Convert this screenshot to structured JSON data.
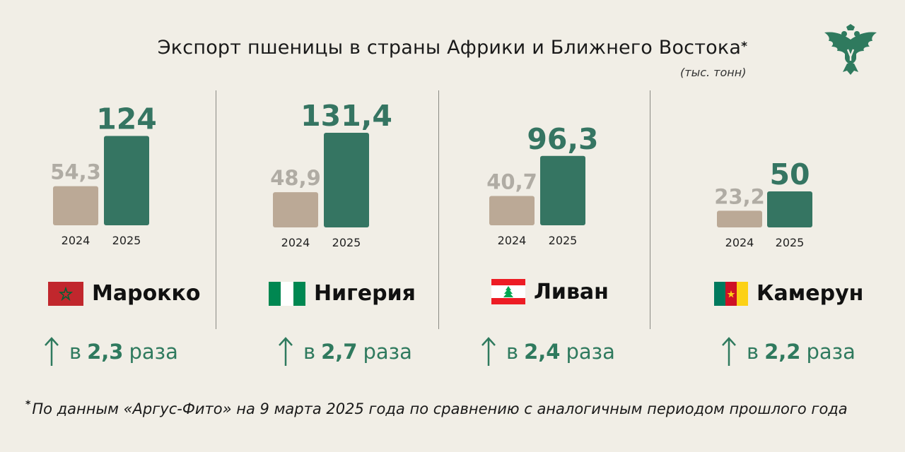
{
  "header": {
    "title": "Экспорт пшеницы в страны Африки и Ближнего Востока",
    "title_mark": "*",
    "unit": "(тыс. тонн)"
  },
  "colors": {
    "bar_2024": "#bba996",
    "bar_2025": "#357562",
    "value_2024": "#b0aca4",
    "value_2025": "#357562",
    "growth": "#2f7a5e"
  },
  "chart_data": [
    {
      "type": "bar",
      "country": "Марокко",
      "categories": [
        "2024",
        "2025"
      ],
      "values": [
        54.3,
        124
      ],
      "value_labels": [
        "54,3",
        "124"
      ],
      "growth": {
        "prefix": "в",
        "factor": "2,3",
        "suffix": "раза"
      }
    },
    {
      "type": "bar",
      "country": "Нигерия",
      "categories": [
        "2024",
        "2025"
      ],
      "values": [
        48.9,
        131.4
      ],
      "value_labels": [
        "48,9",
        "131,4"
      ],
      "growth": {
        "prefix": "в",
        "factor": "2,7",
        "suffix": "раза"
      }
    },
    {
      "type": "bar",
      "country": "Ливан",
      "categories": [
        "2024",
        "2025"
      ],
      "values": [
        40.7,
        96.3
      ],
      "value_labels": [
        "40,7",
        "96,3"
      ],
      "growth": {
        "prefix": "в",
        "factor": "2,4",
        "suffix": "раза"
      }
    },
    {
      "type": "bar",
      "country": "Камерун",
      "categories": [
        "2024",
        "2025"
      ],
      "values": [
        23.2,
        50
      ],
      "value_labels": [
        "23,2",
        "50"
      ],
      "growth": {
        "prefix": "в",
        "factor": "2,2",
        "suffix": "раза"
      }
    }
  ],
  "footnote": {
    "mark": "*",
    "text": "По данным «Аргус-Фито» на 9 марта 2025 года по сравнению с аналогичным периодом прошлого года"
  }
}
